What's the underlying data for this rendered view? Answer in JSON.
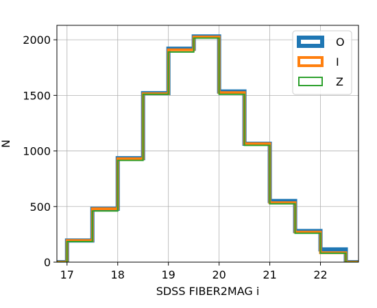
{
  "chart_data": {
    "type": "step",
    "xlabel": "SDSS FIBER2MAG i",
    "ylabel": "N",
    "xlim": [
      16.8,
      22.75
    ],
    "ylim": [
      0,
      2130
    ],
    "xticks": [
      17,
      18,
      19,
      20,
      21,
      22
    ],
    "yticks": [
      0,
      500,
      1000,
      1500,
      2000
    ],
    "grid": true,
    "legend_position": "top-right",
    "bin_edges": [
      16.5,
      17.0,
      17.5,
      18.0,
      18.5,
      19.0,
      19.5,
      20.0,
      20.5,
      21.0,
      21.5,
      22.0,
      22.5,
      23.0
    ],
    "series": [
      {
        "name": "O",
        "color": "#1f77b4",
        "values": [
          0,
          195,
          480,
          935,
          1520,
          1920,
          2030,
          1535,
          1065,
          550,
          280,
          115,
          0
        ]
      },
      {
        "name": "I",
        "color": "#ff7f0e",
        "values": [
          0,
          195,
          480,
          930,
          1515,
          1910,
          2025,
          1525,
          1065,
          535,
          270,
          85,
          0
        ]
      },
      {
        "name": "Z",
        "color": "#2ca02c",
        "values": [
          0,
          185,
          460,
          915,
          1510,
          1890,
          2015,
          1510,
          1050,
          525,
          260,
          80,
          0
        ]
      }
    ]
  }
}
